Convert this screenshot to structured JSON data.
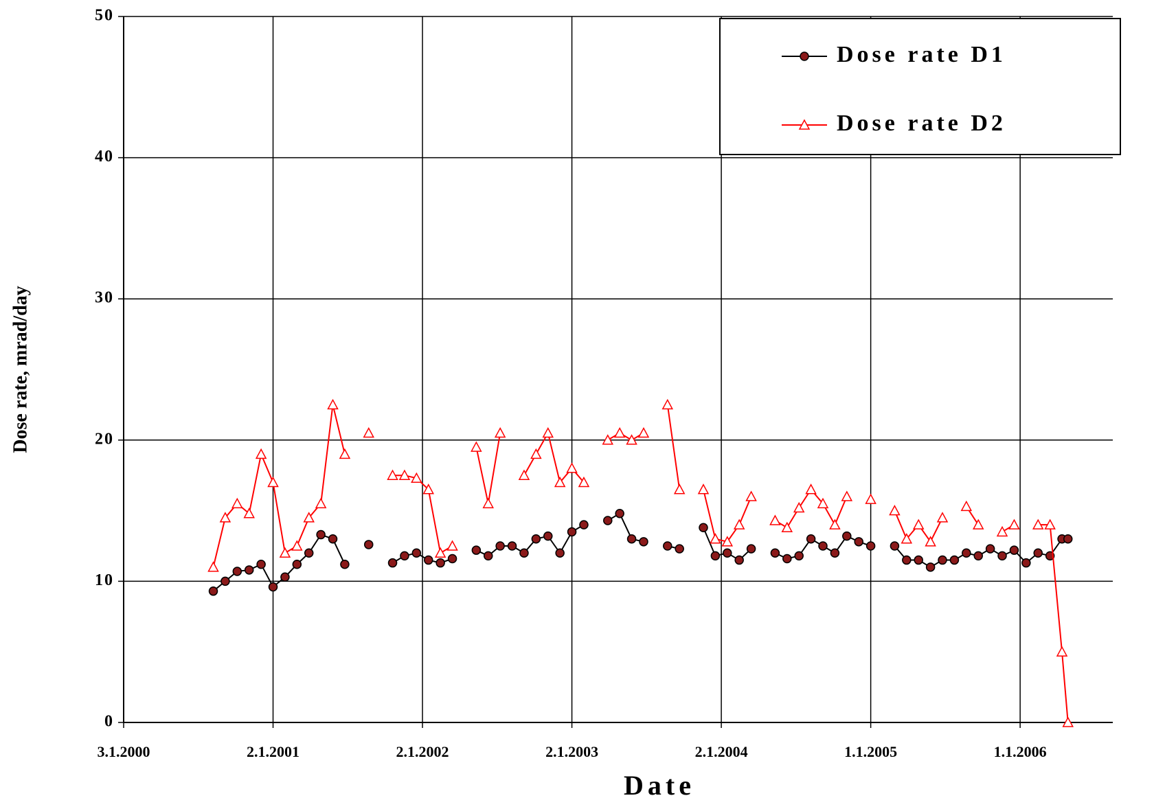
{
  "chart_data": {
    "type": "line",
    "x_label": "Date",
    "y_label": "Dose rate, mrad/day",
    "x": [
      2000.6,
      2000.68,
      2000.76,
      2000.84,
      2000.92,
      2001.0,
      2001.08,
      2001.16,
      2001.24,
      2001.32,
      2001.4,
      2001.48,
      2001.56,
      2001.64,
      2001.72,
      2001.8,
      2001.88,
      2001.96,
      2002.04,
      2002.12,
      2002.2,
      2002.28,
      2002.36,
      2002.44,
      2002.52,
      2002.6,
      2002.68,
      2002.76,
      2002.84,
      2002.92,
      2003.0,
      2003.08,
      2003.16,
      2003.24,
      2003.32,
      2003.4,
      2003.48,
      2003.56,
      2003.64,
      2003.72,
      2003.8,
      2003.88,
      2003.96,
      2004.04,
      2004.12,
      2004.2,
      2004.28,
      2004.36,
      2004.44,
      2004.52,
      2004.6,
      2004.68,
      2004.76,
      2004.84,
      2004.92,
      2005.0,
      2005.08,
      2005.16,
      2005.24,
      2005.32,
      2005.4,
      2005.48,
      2005.56,
      2005.64,
      2005.72,
      2005.8,
      2005.88,
      2005.96,
      2006.04,
      2006.12,
      2006.2,
      2006.28,
      2006.32
    ],
    "series": [
      {
        "name": "Dose rate D1",
        "color": "#000000",
        "marker": "circle",
        "marker_color": "#8b1a1a",
        "values": [
          9.3,
          10.0,
          10.7,
          10.8,
          11.2,
          9.6,
          10.3,
          11.2,
          12.0,
          13.3,
          13.0,
          11.2,
          null,
          12.6,
          null,
          11.3,
          11.8,
          12.0,
          11.5,
          11.3,
          11.6,
          null,
          12.2,
          11.8,
          12.5,
          12.5,
          12.0,
          13.0,
          13.2,
          12.0,
          13.5,
          14.0,
          null,
          14.3,
          14.8,
          13.0,
          12.8,
          null,
          12.5,
          12.3,
          null,
          13.8,
          11.8,
          12.0,
          11.5,
          12.3,
          null,
          12.0,
          11.6,
          11.8,
          13.0,
          12.5,
          12.0,
          13.2,
          12.8,
          12.5,
          null,
          12.5,
          11.5,
          11.5,
          11.0,
          11.5,
          11.5,
          12.0,
          11.8,
          12.3,
          11.8,
          12.2,
          11.3,
          12.0,
          11.8,
          13.0,
          13.0
        ]
      },
      {
        "name": "Dose rate D2",
        "color": "#ff0000",
        "marker": "triangle",
        "marker_color": "#ff0000",
        "values": [
          11,
          14.5,
          15.5,
          14.8,
          19,
          17,
          12,
          12.5,
          14.5,
          15.5,
          22.5,
          19,
          null,
          20.5,
          null,
          17.5,
          17.5,
          17.3,
          16.5,
          12,
          12.5,
          null,
          19.5,
          15.5,
          20.5,
          null,
          17.5,
          19,
          20.5,
          17,
          18,
          17,
          null,
          20,
          20.5,
          20,
          20.5,
          null,
          22.5,
          16.5,
          null,
          16.5,
          13,
          12.8,
          14,
          16,
          null,
          14.3,
          13.8,
          15.2,
          16.5,
          15.5,
          14,
          16,
          null,
          15.8,
          null,
          15,
          13,
          14,
          12.8,
          14.5,
          null,
          15.3,
          14,
          null,
          13.5,
          14,
          null,
          14,
          14,
          5,
          0
        ]
      }
    ],
    "xlim": [
      2000,
      2006.62
    ],
    "xticks": [
      {
        "value": 2000,
        "label": "3.1.2000"
      },
      {
        "value": 2001,
        "label": "2.1.2001"
      },
      {
        "value": 2002,
        "label": "2.1.2002"
      },
      {
        "value": 2003,
        "label": "2.1.2003"
      },
      {
        "value": 2004,
        "label": "2.1.2004"
      },
      {
        "value": 2005,
        "label": "1.1.2005"
      },
      {
        "value": 2006,
        "label": "1.1.2006"
      }
    ],
    "ylim": [
      0,
      50
    ],
    "yticks": [
      0,
      10,
      20,
      30,
      40,
      50
    ],
    "grid": true,
    "legend": "upper right"
  }
}
